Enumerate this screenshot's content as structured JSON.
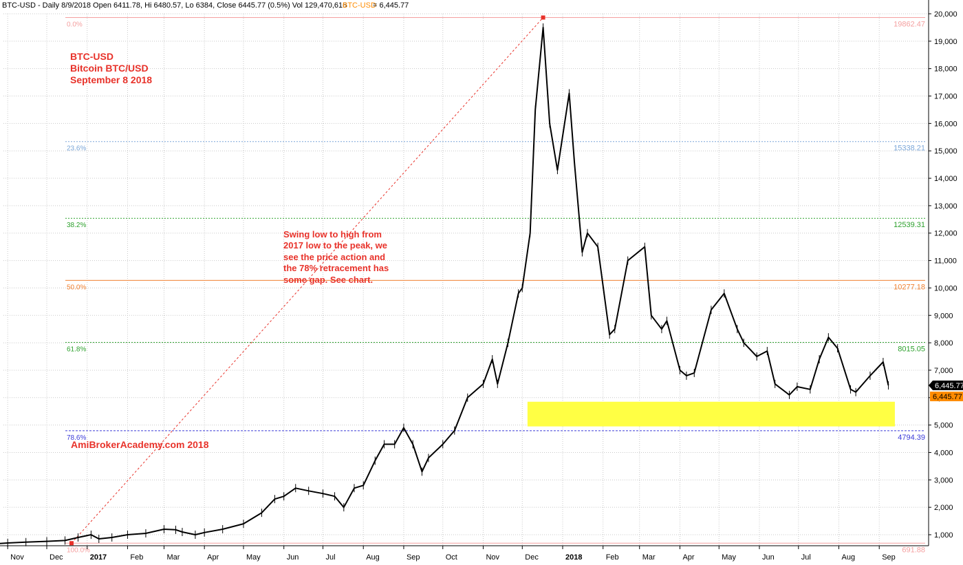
{
  "header": {
    "ticker": "BTC-USD",
    "summary": "BTC-USD - Daily 8/9/2018 Open 6411.78, Hi 6480.57, Lo 6384, Close 6445.77 (0.5%) Vol 129,470,616",
    "series_label": "BTC-USD",
    "series_value": "= 6,445.77"
  },
  "annotations": {
    "title_lines": [
      "BTC-USD",
      "Bitcoin BTC/USD",
      "September 8 2018"
    ],
    "note_lines": [
      "Swing low to high from",
      "2017 low to the peak, we",
      "see the price action and",
      "the 78% retracement has",
      "some gap. See chart."
    ],
    "watermark": "AmiBrokerAcademy.com  2018"
  },
  "colors": {
    "price": "#000000",
    "grid": "#c8c8c8",
    "annotation": "#e8322a",
    "support_zone": "#ffff44",
    "fib_0": "#f4a0a0",
    "fib_236": "#7aa6d8",
    "fib_382": "#2ca02c",
    "fib_50": "#f08030",
    "fib_618": "#2ca02c",
    "fib_786": "#3a3ad8",
    "fib_100": "#f4a0a0",
    "close_box": "#000000",
    "alt_box": "#ff8c00"
  },
  "chart_data": {
    "type": "line",
    "title": "BTC-USD - Daily",
    "xlabel": "",
    "ylabel": "",
    "ylim": [
      691.88,
      19862.47
    ],
    "y_ticks": [
      1000,
      2000,
      3000,
      4000,
      5000,
      6000,
      7000,
      8000,
      9000,
      10000,
      11000,
      12000,
      13000,
      14000,
      15000,
      16000,
      17000,
      18000,
      19000,
      20000
    ],
    "y_tick_labels": [
      "1,000",
      "2,000",
      "3,000",
      "4,000",
      "5,000",
      "6,000",
      "7,000",
      "8,000",
      "9,000",
      "10,000",
      "11,000",
      "12,000",
      "13,000",
      "14,000",
      "15,000",
      "16,000",
      "17,000",
      "18,000",
      "19,000",
      "20,000"
    ],
    "x_labels": [
      {
        "label": "Nov",
        "date": "2016-11-01"
      },
      {
        "label": "Dec",
        "date": "2016-12-01"
      },
      {
        "label": "2017",
        "date": "2017-01-01",
        "bold": true
      },
      {
        "label": "Feb",
        "date": "2017-02-01"
      },
      {
        "label": "Mar",
        "date": "2017-03-01"
      },
      {
        "label": "Apr",
        "date": "2017-04-01"
      },
      {
        "label": "May",
        "date": "2017-05-01"
      },
      {
        "label": "Jun",
        "date": "2017-06-01"
      },
      {
        "label": "Jul",
        "date": "2017-07-01"
      },
      {
        "label": "Aug",
        "date": "2017-08-01"
      },
      {
        "label": "Sep",
        "date": "2017-09-01"
      },
      {
        "label": "Oct",
        "date": "2017-10-01"
      },
      {
        "label": "Nov",
        "date": "2017-11-01"
      },
      {
        "label": "Dec",
        "date": "2017-12-01"
      },
      {
        "label": "2018",
        "date": "2018-01-01",
        "bold": true
      },
      {
        "label": "Feb",
        "date": "2018-02-01"
      },
      {
        "label": "Mar",
        "date": "2018-03-01"
      },
      {
        "label": "Apr",
        "date": "2018-04-01"
      },
      {
        "label": "May",
        "date": "2018-05-01"
      },
      {
        "label": "Jun",
        "date": "2018-06-01"
      },
      {
        "label": "Jul",
        "date": "2018-07-01"
      },
      {
        "label": "Aug",
        "date": "2018-08-01"
      },
      {
        "label": "Sep",
        "date": "2018-09-01"
      }
    ],
    "series": [
      {
        "x": [
          "2016-10-15",
          "2016-11-01",
          "2016-11-15",
          "2016-12-01",
          "2016-12-15",
          "2016-12-25",
          "2017-01-04",
          "2017-01-10",
          "2017-01-20",
          "2017-02-01",
          "2017-02-15",
          "2017-03-01",
          "2017-03-10",
          "2017-03-15",
          "2017-03-25",
          "2017-04-01",
          "2017-04-15",
          "2017-05-01",
          "2017-05-15",
          "2017-05-25",
          "2017-06-01",
          "2017-06-10",
          "2017-06-20",
          "2017-07-01",
          "2017-07-10",
          "2017-07-17",
          "2017-07-25",
          "2017-08-01",
          "2017-08-10",
          "2017-08-17",
          "2017-08-25",
          "2017-09-01",
          "2017-09-08",
          "2017-09-15",
          "2017-09-20",
          "2017-10-01",
          "2017-10-10",
          "2017-10-20",
          "2017-11-01",
          "2017-11-08",
          "2017-11-12",
          "2017-11-20",
          "2017-11-28",
          "2017-12-01",
          "2017-12-07",
          "2017-12-11",
          "2017-12-17",
          "2017-12-22",
          "2017-12-28",
          "2018-01-06",
          "2018-01-10",
          "2018-01-16",
          "2018-01-20",
          "2018-01-28",
          "2018-02-06",
          "2018-02-10",
          "2018-02-20",
          "2018-03-05",
          "2018-03-10",
          "2018-03-18",
          "2018-03-22",
          "2018-04-01",
          "2018-04-06",
          "2018-04-12",
          "2018-04-25",
          "2018-05-05",
          "2018-05-15",
          "2018-05-20",
          "2018-05-30",
          "2018-06-07",
          "2018-06-13",
          "2018-06-24",
          "2018-06-30",
          "2018-07-10",
          "2018-07-17",
          "2018-07-24",
          "2018-07-31",
          "2018-08-10",
          "2018-08-14",
          "2018-08-25",
          "2018-09-04",
          "2018-09-08"
        ],
        "values": [
          640,
          700,
          730,
          760,
          790,
          900,
          1000,
          850,
          900,
          1000,
          1050,
          1200,
          1180,
          1100,
          1000,
          1080,
          1200,
          1400,
          1800,
          2300,
          2400,
          2700,
          2600,
          2500,
          2400,
          2000,
          2700,
          2800,
          3700,
          4300,
          4300,
          4900,
          4300,
          3300,
          3800,
          4300,
          4800,
          6000,
          6500,
          7400,
          6500,
          8000,
          9800,
          10000,
          12000,
          16500,
          19500,
          16000,
          14300,
          17100,
          14600,
          11300,
          12000,
          11500,
          8300,
          8500,
          11000,
          11500,
          9000,
          8500,
          8800,
          7000,
          6800,
          6900,
          9200,
          9800,
          8500,
          8000,
          7500,
          7700,
          6500,
          6100,
          6400,
          6300,
          7400,
          8200,
          7800,
          6300,
          6200,
          6800,
          7300,
          6445.77
        ]
      }
    ],
    "fibonacci": [
      {
        "label": "0.0%",
        "value": 19862.47,
        "value_text": "19862.47"
      },
      {
        "label": "23.6%",
        "value": 15338.21,
        "value_text": "15338.21"
      },
      {
        "label": "38.2%",
        "value": 12539.31,
        "value_text": "12539.31"
      },
      {
        "label": "50.0%",
        "value": 10277.18,
        "value_text": "10277.18"
      },
      {
        "label": "61.8%",
        "value": 8015.05,
        "value_text": "8015.05"
      },
      {
        "label": "78.6%",
        "value": 4794.39,
        "value_text": "4794.39"
      },
      {
        "label": "100.0%",
        "value": 691.88,
        "value_text": "691.88"
      }
    ],
    "swing_line": {
      "from": {
        "x": "2016-12-20",
        "y": 691.88
      },
      "to": {
        "x": "2017-12-17",
        "y": 19862.47
      }
    },
    "support_zone": {
      "x_from": "2017-12-05",
      "x_to": "2018-09-13",
      "y_from": 4950,
      "y_to": 5850
    },
    "last_close": "6,445.77",
    "last_close_alt": "6,445.77"
  }
}
